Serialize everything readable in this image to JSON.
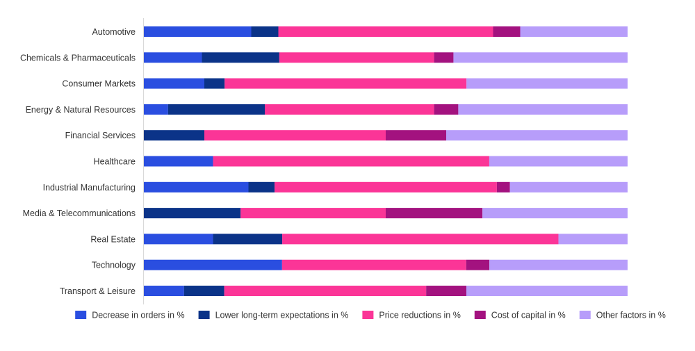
{
  "chart_data": {
    "type": "bar",
    "orientation": "horizontal",
    "stacked": true,
    "normalized_percent": true,
    "xlim": [
      0,
      100
    ],
    "grid": false,
    "legend_position": "bottom",
    "categories": [
      "Automotive",
      "Chemicals & Pharmaceuticals",
      "Consumer Markets",
      "Energy & Natural Resources",
      "Financial Services",
      "Healthcare",
      "Industrial Manufacturing",
      "Media & Telecommunications",
      "Real Estate",
      "Technology",
      "Transport & Leisure"
    ],
    "series": [
      {
        "name": "Decrease in orders in %",
        "color": "#2a4ee0",
        "values": [
          22.2,
          12.0,
          12.5,
          5.0,
          0,
          14.3,
          21.6,
          0,
          14.3,
          28.6,
          8.3
        ]
      },
      {
        "name": "Lower long-term expectations in %",
        "color": "#0b3388",
        "values": [
          5.6,
          16.0,
          4.2,
          20.0,
          12.5,
          0,
          5.4,
          20.0,
          14.3,
          0,
          8.3
        ]
      },
      {
        "name": "Price reductions in %",
        "color": "#fb3597",
        "values": [
          44.4,
          32.0,
          50.0,
          35.0,
          37.5,
          57.1,
          45.9,
          30.0,
          57.1,
          38.1,
          41.7
        ]
      },
      {
        "name": "Cost of capital in %",
        "color": "#a3127f",
        "values": [
          5.6,
          4.0,
          0,
          5.0,
          12.5,
          0,
          2.7,
          20.0,
          0,
          4.8,
          8.3
        ]
      },
      {
        "name": "Other factors in %",
        "color": "#b79dfa",
        "values": [
          22.2,
          36.0,
          33.3,
          35.0,
          37.5,
          28.6,
          24.3,
          30.0,
          14.3,
          28.6,
          33.3
        ]
      }
    ]
  }
}
